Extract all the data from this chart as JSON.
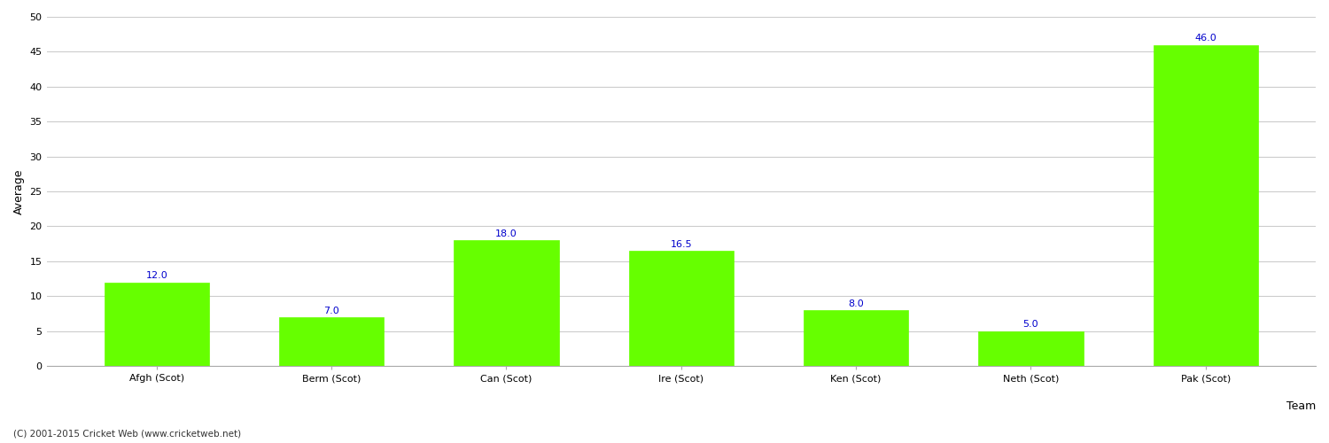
{
  "categories": [
    "Afgh (Scot)",
    "Berm (Scot)",
    "Can (Scot)",
    "Ire (Scot)",
    "Ken (Scot)",
    "Neth (Scot)",
    "Pak (Scot)"
  ],
  "values": [
    12.0,
    7.0,
    18.0,
    16.5,
    8.0,
    5.0,
    46.0
  ],
  "bar_color": "#66ff00",
  "bar_edge_color": "#66ff00",
  "label_color": "#0000cc",
  "xlabel": "Team",
  "ylabel": "Average",
  "ylim": [
    0,
    50
  ],
  "yticks": [
    0,
    5,
    10,
    15,
    20,
    25,
    30,
    35,
    40,
    45,
    50
  ],
  "grid_color": "#cccccc",
  "background_color": "#ffffff",
  "fig_background": "#ffffff",
  "label_fontsize": 9,
  "tick_fontsize": 8,
  "annotation_fontsize": 8,
  "footer": "(C) 2001-2015 Cricket Web (www.cricketweb.net)"
}
